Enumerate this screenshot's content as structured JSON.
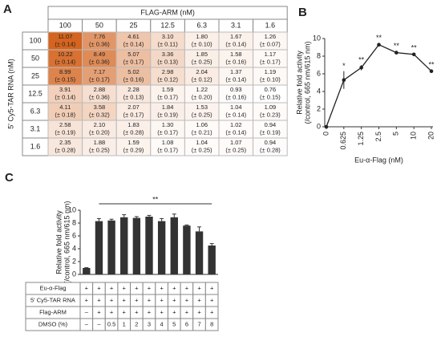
{
  "chart_data": [
    {
      "type": "heatmap",
      "panel": "A",
      "title": "FLAG-ARM (nM)",
      "ylabel": "5' Cy5-TAR RNA (nM)",
      "color": "#d4641f",
      "columns": [
        "100",
        "50",
        "25",
        "12.5",
        "6.3",
        "3.1",
        "1.6"
      ],
      "rows": [
        "100",
        "50",
        "25",
        "12.5",
        "6.3",
        "3.1",
        "1.6"
      ],
      "values": [
        [
          11.07,
          7.76,
          4.61,
          3.1,
          1.8,
          1.67,
          1.26
        ],
        [
          10.22,
          8.49,
          5.07,
          3.36,
          1.85,
          1.58,
          1.17
        ],
        [
          8.99,
          7.17,
          5.02,
          2.98,
          2.04,
          1.37,
          1.19
        ],
        [
          3.91,
          2.88,
          2.28,
          1.59,
          1.22,
          0.93,
          0.76
        ],
        [
          4.11,
          3.58,
          2.07,
          1.84,
          1.53,
          1.04,
          1.09
        ],
        [
          2.58,
          2.1,
          1.83,
          1.3,
          1.06,
          1.02,
          0.94
        ],
        [
          2.35,
          1.88,
          1.59,
          1.08,
          1.04,
          1.07,
          0.94
        ]
      ],
      "value_labels": [
        [
          "11.07",
          "7.76",
          "4.61",
          "3.10",
          "1.80",
          "1.67",
          "1.26"
        ],
        [
          "10.22",
          "8.49",
          "5.07",
          "3.36",
          "1.85",
          "1.58",
          "1.17"
        ],
        [
          "8.99",
          "7.17",
          "5.02",
          "2.98",
          "2.04",
          "1.37",
          "1.19"
        ],
        [
          "3.91",
          "2.88",
          "2.28",
          "1.59",
          "1.22",
          "0.93",
          "0.76"
        ],
        [
          "4.11",
          "3.58",
          "2.07",
          "1.84",
          "1.53",
          "1.04",
          "1.09"
        ],
        [
          "2.58",
          "2.10",
          "1.83",
          "1.30",
          "1.06",
          "1.02",
          "0.94"
        ],
        [
          "2.35",
          "1.88",
          "1.59",
          "1.08",
          "1.04",
          "1.07",
          "0.94"
        ]
      ],
      "errors": [
        [
          0.14,
          0.36,
          0.14,
          0.11,
          0.1,
          0.14,
          0.07
        ],
        [
          0.14,
          0.36,
          0.17,
          0.13,
          0.25,
          0.16,
          0.17
        ],
        [
          0.15,
          0.17,
          0.16,
          0.12,
          0.12,
          0.14,
          0.1
        ],
        [
          0.14,
          0.36,
          0.13,
          0.17,
          0.2,
          0.16,
          0.15
        ],
        [
          0.18,
          0.32,
          0.17,
          0.19,
          0.25,
          0.14,
          0.23
        ],
        [
          0.19,
          0.2,
          0.28,
          0.17,
          0.21,
          0.14,
          0.19
        ],
        [
          0.28,
          0.25,
          0.29,
          0.17,
          0.25,
          0.25,
          0.28
        ]
      ],
      "error_labels": [
        [
          "(± 0.14)",
          "(± 0.36)",
          "(± 0.14)",
          "(± 0.11)",
          "(± 0.10)",
          "(± 0.14)",
          "(± 0.07)"
        ],
        [
          "(± 0.14)",
          "(± 0.36)",
          "(± 0.17)",
          "(± 0.13)",
          "(± 0.25)",
          "(± 0.16)",
          "(± 0.17)"
        ],
        [
          "(± 0.15)",
          "(± 0.17)",
          "(± 0.16)",
          "(± 0.12)",
          "(± 0.12)",
          "(± 0.14)",
          "(± 0.10)"
        ],
        [
          "(± 0.14)",
          "(± 0.36)",
          "(± 0.13)",
          "(± 0.17)",
          "(± 0.20)",
          "(± 0.16)",
          "(± 0.15)"
        ],
        [
          "(± 0.18)",
          "(± 0.32)",
          "(± 0.17)",
          "(± 0.19)",
          "(± 0.25)",
          "(± 0.14)",
          "(± 0.23)"
        ],
        [
          "(± 0.19)",
          "(± 0.20)",
          "(± 0.28)",
          "(± 0.17)",
          "(± 0.21)",
          "(± 0.14)",
          "(± 0.19)"
        ],
        [
          "(± 0.28)",
          "(± 0.25)",
          "(± 0.29)",
          "(± 0.17)",
          "(± 0.25)",
          "(± 0.25)",
          "(± 0.28)"
        ]
      ]
    },
    {
      "type": "line",
      "panel": "B",
      "xlabel": "Eu-α-Flag (nM)",
      "ylabel": [
        "Relative fold activity",
        "(/control, 665 nm/615 nm)"
      ],
      "categories": [
        "0",
        "0.625",
        "1.25",
        "2.5",
        "5",
        "10",
        "20"
      ],
      "values": [
        0,
        5.3,
        6.7,
        9.3,
        8.4,
        8.2,
        6.3
      ],
      "errors": [
        0,
        1.0,
        0.3,
        0.2,
        0.2,
        0.15,
        0.15
      ],
      "annotations": [
        null,
        "*",
        "**",
        "**",
        "**",
        "**",
        "**"
      ],
      "color": "#222222",
      "ylim": [
        0,
        10
      ],
      "yticks": [
        0,
        2,
        4,
        6,
        8,
        10
      ]
    },
    {
      "type": "bar",
      "panel": "C",
      "ylabel": [
        "Relative fold activity",
        "(/control, 665 nm/615 nm)"
      ],
      "values": [
        1.0,
        8.3,
        8.4,
        8.9,
        8.8,
        9.0,
        8.3,
        8.9,
        7.6,
        6.7,
        4.5
      ],
      "errors": [
        0.05,
        0.4,
        0.2,
        0.4,
        0.2,
        0.2,
        0.4,
        0.5,
        0.1,
        0.7,
        0.3
      ],
      "significance_label": "**",
      "color": "#333333",
      "ylim": [
        0,
        10
      ],
      "yticks": [
        0,
        2,
        4,
        6,
        8,
        10
      ],
      "table": [
        {
          "label": "Eu-α-Flag",
          "cells": [
            "+",
            "+",
            "+",
            "+",
            "+",
            "+",
            "+",
            "+",
            "+",
            "+",
            "+"
          ]
        },
        {
          "label": "5' Cy5-TAR RNA",
          "cells": [
            "+",
            "+",
            "+",
            "+",
            "+",
            "+",
            "+",
            "+",
            "+",
            "+",
            "+"
          ]
        },
        {
          "label": "Flag-ARM",
          "cells": [
            "–",
            "+",
            "+",
            "+",
            "+",
            "+",
            "+",
            "+",
            "+",
            "+",
            "+"
          ]
        },
        {
          "label": "DMSO (%)",
          "cells": [
            "–",
            "–",
            "0.5",
            "1",
            "2",
            "3",
            "4",
            "5",
            "6",
            "7",
            "8"
          ]
        }
      ]
    }
  ]
}
